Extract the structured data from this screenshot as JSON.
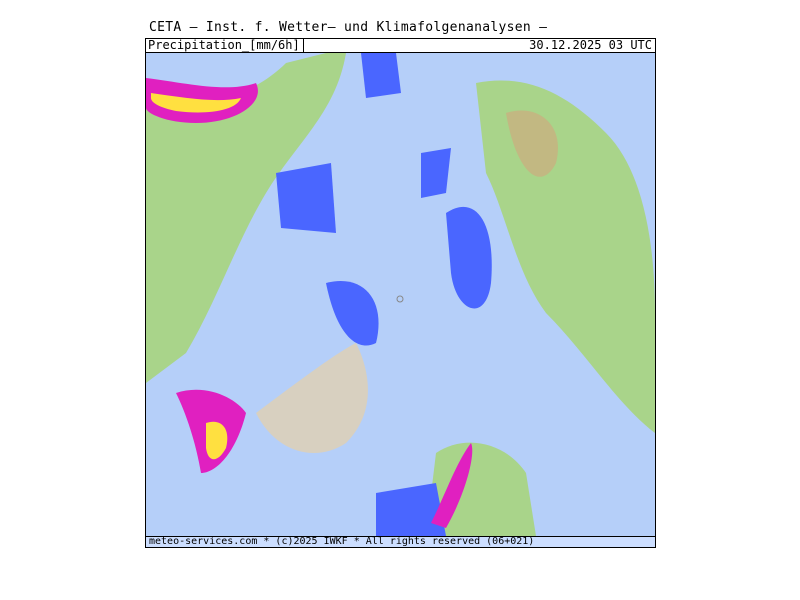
{
  "title": "CETA — Inst. f. Wetter— und Klimafolgenanalysen —",
  "header": {
    "parameter": "Precipitation_[mm/6h]",
    "valid_time": "30.12.2025 03 UTC"
  },
  "footer": {
    "credit": "meteo-services.com * (c)2025 IWKF * All rights reserved (06+021)"
  },
  "map": {
    "projection": "polar-stereographic-arctic",
    "colors": {
      "ocean_no_precip": "#c8dcfa",
      "light_precip": "#8fb4f5",
      "moderate_precip": "#4a66ff",
      "land": "#a9d48a",
      "heavy_precip": "#e020c0",
      "extreme_precip": "#ffe040",
      "ice_sheet": "#d8d0c0"
    }
  }
}
